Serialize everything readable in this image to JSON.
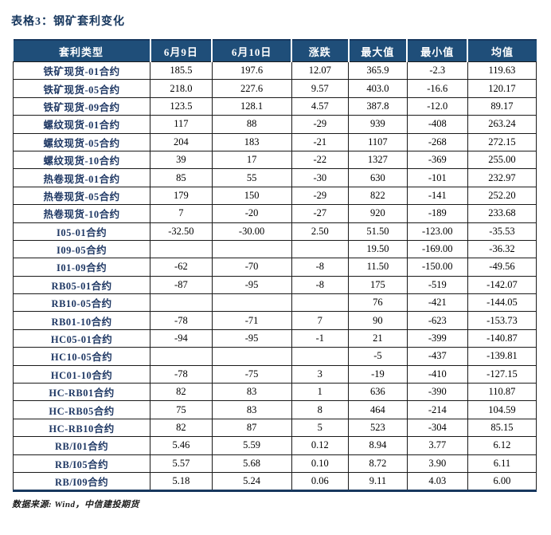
{
  "title": "表格3：钢矿套利变化",
  "colors": {
    "header_bg": "#1F4E79",
    "accent_border": "#17375E",
    "row_label_text": "#1F3864"
  },
  "footer": {
    "source_label": "数据来源: Wind，中信建投期货"
  },
  "chart_data": {
    "type": "table",
    "title": "表格3：钢矿套利变化",
    "columns": [
      "套利类型",
      "6月9日",
      "6月10日",
      "涨跌",
      "最大值",
      "最小值",
      "均值"
    ],
    "rows": [
      {
        "label": "铁矿现货-01合约",
        "values": [
          "185.5",
          "197.6",
          "12.07",
          "365.9",
          "-2.3",
          "119.63"
        ]
      },
      {
        "label": "铁矿现货-05合约",
        "values": [
          "218.0",
          "227.6",
          "9.57",
          "403.0",
          "-16.6",
          "120.17"
        ]
      },
      {
        "label": "铁矿现货-09合约",
        "values": [
          "123.5",
          "128.1",
          "4.57",
          "387.8",
          "-12.0",
          "89.17"
        ]
      },
      {
        "label": "螺纹现货-01合约",
        "values": [
          "117",
          "88",
          "-29",
          "939",
          "-408",
          "263.24"
        ]
      },
      {
        "label": "螺纹现货-05合约",
        "values": [
          "204",
          "183",
          "-21",
          "1107",
          "-268",
          "272.15"
        ]
      },
      {
        "label": "螺纹现货-10合约",
        "values": [
          "39",
          "17",
          "-22",
          "1327",
          "-369",
          "255.00"
        ]
      },
      {
        "label": "热卷现货-01合约",
        "values": [
          "85",
          "55",
          "-30",
          "630",
          "-101",
          "232.97"
        ]
      },
      {
        "label": "热卷现货-05合约",
        "values": [
          "179",
          "150",
          "-29",
          "822",
          "-141",
          "252.20"
        ]
      },
      {
        "label": "热卷现货-10合约",
        "values": [
          "7",
          "-20",
          "-27",
          "920",
          "-189",
          "233.68"
        ]
      },
      {
        "label": "I05-01合约",
        "values": [
          "-32.50",
          "-30.00",
          "2.50",
          "51.50",
          "-123.00",
          "-35.53"
        ]
      },
      {
        "label": "I09-05合约",
        "values": [
          "",
          "",
          "",
          "19.50",
          "-169.00",
          "-36.32"
        ]
      },
      {
        "label": "I01-09合约",
        "values": [
          "-62",
          "-70",
          "-8",
          "11.50",
          "-150.00",
          "-49.56"
        ]
      },
      {
        "label": "RB05-01合约",
        "values": [
          "-87",
          "-95",
          "-8",
          "175",
          "-519",
          "-142.07"
        ]
      },
      {
        "label": "RB10-05合约",
        "values": [
          "",
          "",
          "",
          "76",
          "-421",
          "-144.05"
        ]
      },
      {
        "label": "RB01-10合约",
        "values": [
          "-78",
          "-71",
          "7",
          "90",
          "-623",
          "-153.73"
        ]
      },
      {
        "label": "HC05-01合约",
        "values": [
          "-94",
          "-95",
          "-1",
          "21",
          "-399",
          "-140.87"
        ]
      },
      {
        "label": "HC10-05合约",
        "values": [
          "",
          "",
          "",
          "-5",
          "-437",
          "-139.81"
        ]
      },
      {
        "label": "HC01-10合约",
        "values": [
          "-78",
          "-75",
          "3",
          "-19",
          "-410",
          "-127.15"
        ]
      },
      {
        "label": "HC-RB01合约",
        "values": [
          "82",
          "83",
          "1",
          "636",
          "-390",
          "110.87"
        ]
      },
      {
        "label": "HC-RB05合约",
        "values": [
          "75",
          "83",
          "8",
          "464",
          "-214",
          "104.59"
        ]
      },
      {
        "label": "HC-RB10合约",
        "values": [
          "82",
          "87",
          "5",
          "523",
          "-304",
          "85.15"
        ]
      },
      {
        "label": "RB/I01合约",
        "values": [
          "5.46",
          "5.59",
          "0.12",
          "8.94",
          "3.77",
          "6.12"
        ]
      },
      {
        "label": "RB/I05合约",
        "values": [
          "5.57",
          "5.68",
          "0.10",
          "8.72",
          "3.90",
          "6.11"
        ]
      },
      {
        "label": "RB/I09合约",
        "values": [
          "5.18",
          "5.24",
          "0.06",
          "9.11",
          "4.03",
          "6.00"
        ]
      }
    ]
  }
}
